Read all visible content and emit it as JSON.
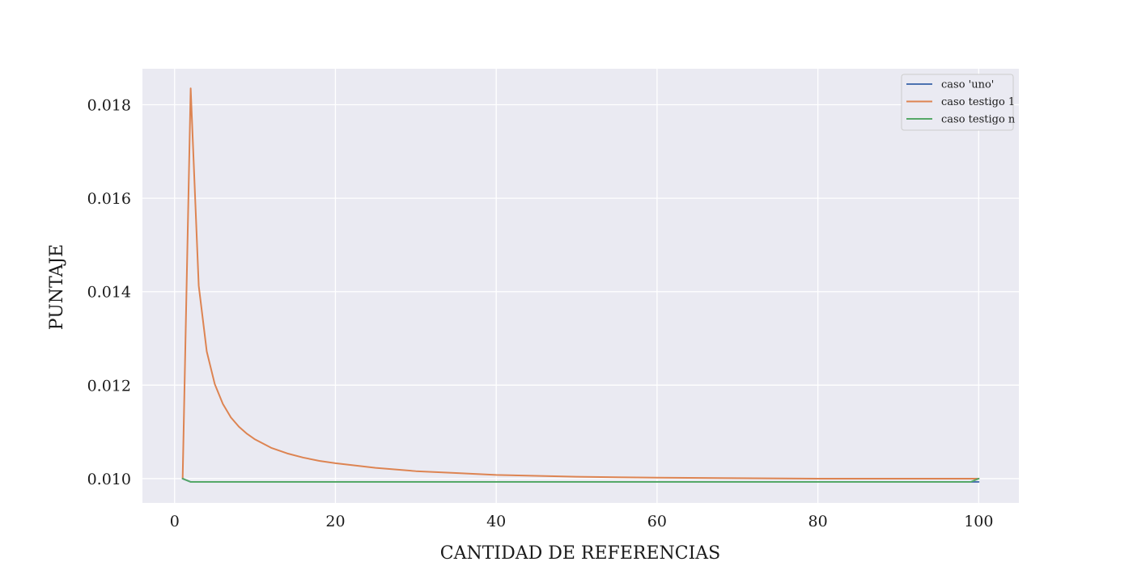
{
  "chart_data": {
    "type": "line",
    "title": "",
    "xlabel": "CANTIDAD DE REFERENCIAS",
    "ylabel": "PUNTAJE",
    "xlim": [
      -4,
      105
    ],
    "ylim": [
      0.00948,
      0.01877
    ],
    "xticks": [
      0,
      20,
      40,
      60,
      80,
      100
    ],
    "yticks": [
      0.01,
      0.012,
      0.014,
      0.016,
      0.018
    ],
    "xtick_labels": [
      "0",
      "20",
      "40",
      "60",
      "80",
      "100"
    ],
    "ytick_labels": [
      "0.010",
      "0.012",
      "0.014",
      "0.016",
      "0.018"
    ],
    "grid": true,
    "legend_position": "top-right",
    "series": [
      {
        "name": "caso 'uno'",
        "color": "#4c72b0",
        "x": [
          1,
          2,
          3,
          5,
          10,
          20,
          40,
          60,
          80,
          99,
          100
        ],
        "y": [
          0.01,
          0.00993,
          0.00993,
          0.00993,
          0.00993,
          0.00993,
          0.00993,
          0.00993,
          0.00993,
          0.00993,
          0.00993
        ]
      },
      {
        "name": "caso testigo 1",
        "color": "#dd8452",
        "x": [
          1,
          2,
          3,
          4,
          5,
          6,
          7,
          8,
          9,
          10,
          12,
          14,
          16,
          18,
          20,
          25,
          30,
          35,
          40,
          50,
          60,
          70,
          80,
          90,
          100
        ],
        "y": [
          0.01,
          0.01835,
          0.01413,
          0.01272,
          0.01202,
          0.0116,
          0.01131,
          0.01111,
          0.01096,
          0.01084,
          0.01066,
          0.01054,
          0.01045,
          0.01038,
          0.01033,
          0.01023,
          0.01016,
          0.01012,
          0.01008,
          0.01004,
          0.01002,
          0.01001,
          0.01,
          0.01,
          0.01
        ]
      },
      {
        "name": "caso testigo n",
        "color": "#55a868",
        "x": [
          1,
          2,
          3,
          5,
          10,
          20,
          40,
          60,
          80,
          99,
          100
        ],
        "y": [
          0.01,
          0.00993,
          0.00993,
          0.00993,
          0.00993,
          0.00993,
          0.00993,
          0.00993,
          0.00993,
          0.00993,
          0.01
        ]
      }
    ]
  }
}
